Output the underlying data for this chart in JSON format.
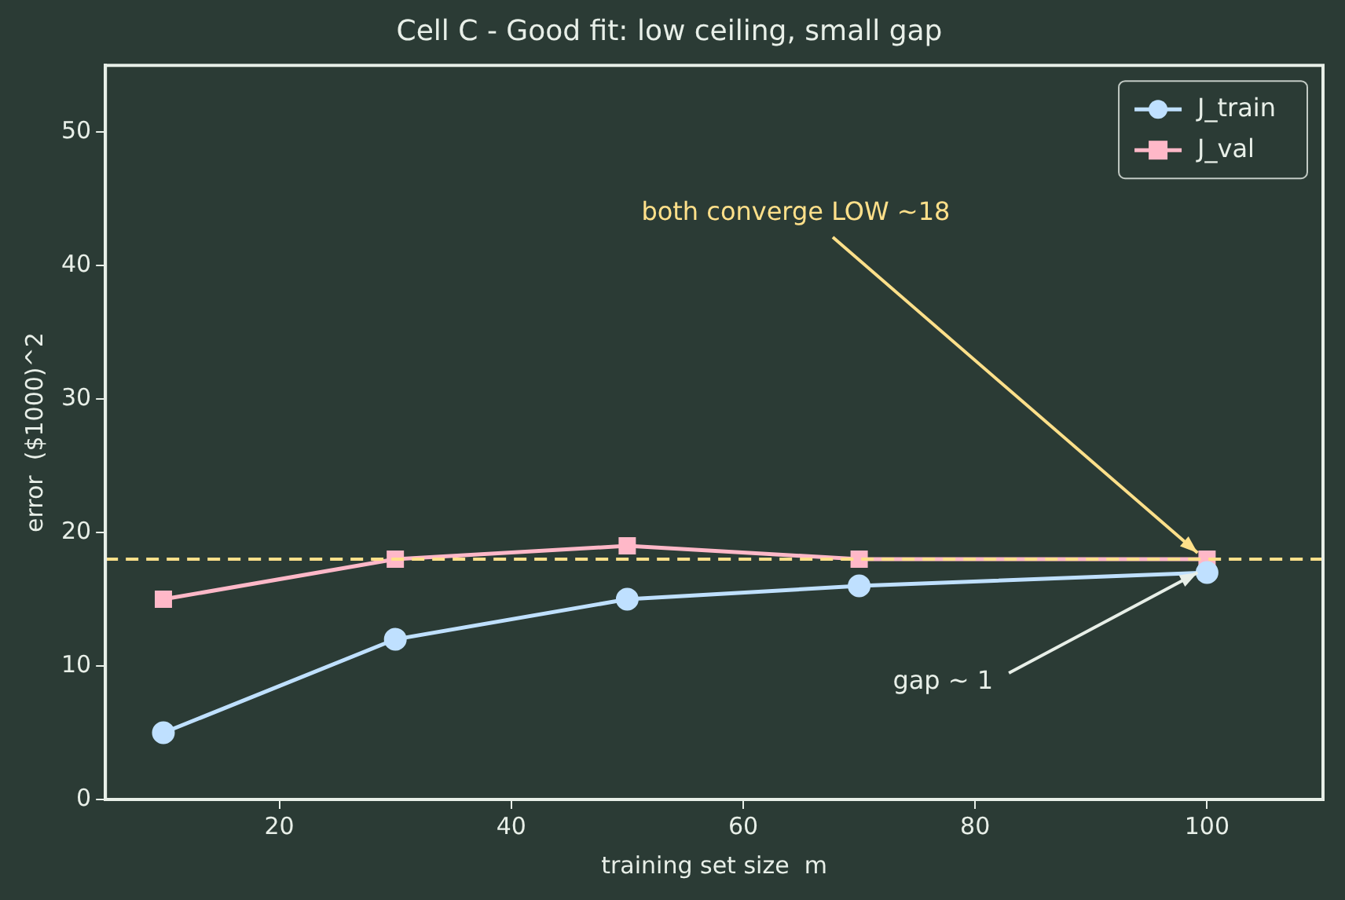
{
  "chart_data": {
    "type": "line",
    "title": "Cell C - Good fit: low ceiling, small gap",
    "xlabel": "training set size  m",
    "ylabel": "error  ($1000)^2",
    "x": [
      10,
      30,
      50,
      70,
      100
    ],
    "series": [
      {
        "name": "J_train",
        "color": "#bfe0ff",
        "marker": "circle",
        "values": [
          5,
          12,
          15,
          16,
          17
        ]
      },
      {
        "name": "J_val",
        "color": "#ffb8c8",
        "marker": "square",
        "values": [
          15,
          18,
          19,
          18,
          18
        ]
      }
    ],
    "xlim": [
      5,
      110
    ],
    "xticks": [
      20,
      40,
      60,
      80,
      100
    ],
    "ylim": [
      0,
      55
    ],
    "yticks": [
      0,
      10,
      20,
      30,
      40,
      50
    ],
    "ref_lines": [
      {
        "axis": "y",
        "value": 18,
        "color": "#ffe08a",
        "line_style": "dashed"
      }
    ],
    "annotations": [
      {
        "text": "both converge LOW ~18",
        "x": 100,
        "y": 18
      },
      {
        "text": "gap ~ 1",
        "x": 100,
        "y": 17
      }
    ],
    "grid": false,
    "legend": "top right",
    "line_style": "solid"
  }
}
